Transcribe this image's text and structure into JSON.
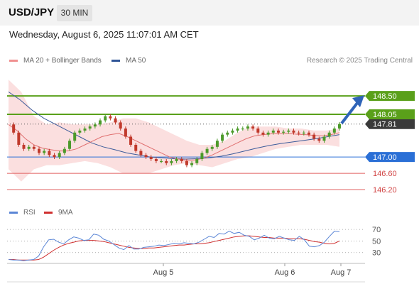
{
  "header": {
    "symbol": "USD/JPY",
    "timeframe": "30 MIN"
  },
  "datetime": "Wednesday, August 6, 2025 11:07:01 AM CET",
  "legend": {
    "ma20": "MA 20 + Bollinger Bands",
    "ma50": "MA 50",
    "credit": "Research © 2025 Trading Central",
    "rsi": "RSI",
    "ma9": "9MA"
  },
  "colors": {
    "ma20": "#e07070",
    "band": "#f7c5c5",
    "ma50": "#3b5b9a",
    "resistance": "#5aa01a",
    "support_blue": "#2a6fd6",
    "support_red": "#e06060",
    "rsi": "#5b86d6",
    "rsi_ma": "#d03030",
    "bull": "#4c9a2a",
    "bear": "#c0392b"
  },
  "chart_data": [
    {
      "type": "candlestick",
      "x_ticks": [
        "Aug 5",
        "Aug 6",
        "Aug 7"
      ],
      "levels": [
        {
          "value": "148.50",
          "kind": "resistance"
        },
        {
          "value": "148.05",
          "kind": "resistance"
        },
        {
          "value": "147.81",
          "kind": "current"
        },
        {
          "value": "147.00",
          "kind": "pivot"
        },
        {
          "value": "146.60",
          "kind": "support"
        },
        {
          "value": "146.20",
          "kind": "support"
        }
      ],
      "ylim": [
        145.8,
        149.2
      ],
      "series": [
        {
          "key": "price",
          "values": [
            147.8,
            147.6,
            147.3,
            147.2,
            147.25,
            147.2,
            147.1,
            147.15,
            147.05,
            147.0,
            147.1,
            147.2,
            147.4,
            147.6,
            147.65,
            147.7,
            147.75,
            147.8,
            147.9,
            148.0,
            147.95,
            147.85,
            147.7,
            147.5,
            147.3,
            147.15,
            147.05,
            147.0,
            146.95,
            146.9,
            146.9,
            146.85,
            146.9,
            146.95,
            146.9,
            146.8,
            146.85,
            146.95,
            147.1,
            147.2,
            147.25,
            147.4,
            147.55,
            147.6,
            147.65,
            147.7,
            147.7,
            147.75,
            147.7,
            147.6,
            147.55,
            147.6,
            147.65,
            147.6,
            147.62,
            147.65,
            147.6,
            147.58,
            147.6,
            147.55,
            147.45,
            147.4,
            147.5,
            147.6,
            147.7,
            147.81
          ]
        },
        {
          "key": "ma20",
          "values": [
            147.8,
            147.65,
            147.45,
            147.3,
            147.22,
            147.18,
            147.15,
            147.15,
            147.2,
            147.3,
            147.4,
            147.5,
            147.55,
            147.58,
            147.5,
            147.4,
            147.3,
            147.2,
            147.1,
            147.0,
            146.95,
            146.92,
            146.93,
            146.97,
            147.05,
            147.15,
            147.25,
            147.35,
            147.45,
            147.52,
            147.55,
            147.57,
            147.58,
            147.58,
            147.56,
            147.55,
            147.53,
            147.52,
            147.55,
            147.6
          ]
        },
        {
          "key": "ma50",
          "values": [
            148.6,
            148.4,
            148.15,
            147.95,
            147.8,
            147.65,
            147.5,
            147.35,
            147.25,
            147.18,
            147.1,
            147.05,
            147.0,
            146.98,
            146.96,
            146.95,
            146.96,
            146.98,
            147.02,
            147.08,
            147.15,
            147.22,
            147.28,
            147.33,
            147.37,
            147.41,
            147.45,
            147.5,
            147.55
          ]
        },
        {
          "key": "upper_band",
          "values": [
            148.9,
            148.6,
            148.0,
            147.8,
            147.85,
            147.8,
            147.8,
            147.8,
            147.85,
            147.95,
            147.95,
            147.85,
            147.7,
            147.55,
            147.4,
            147.3,
            147.3,
            147.4,
            147.6,
            147.75,
            147.75,
            147.75,
            147.7,
            147.7,
            147.65,
            147.65,
            147.7
          ]
        },
        {
          "key": "lower_band",
          "values": [
            146.7,
            146.4,
            146.7,
            146.8,
            146.8,
            146.85,
            146.9,
            146.85,
            146.75,
            146.6,
            146.6,
            146.6,
            146.7,
            146.8,
            146.85,
            146.8,
            146.75,
            146.85,
            146.95,
            147.0,
            147.1,
            147.2,
            147.25,
            147.3,
            147.3,
            147.3,
            147.25
          ]
        }
      ]
    },
    {
      "type": "line",
      "title": "RSI",
      "yticks": [
        "70",
        "50",
        "30"
      ],
      "ylim": [
        10,
        80
      ],
      "series": [
        {
          "name": "RSI",
          "values": [
            18,
            17,
            17,
            16,
            17,
            18,
            24,
            40,
            52,
            53,
            48,
            45,
            52,
            57,
            55,
            51,
            52,
            62,
            60,
            53,
            50,
            44,
            38,
            35,
            42,
            36,
            36,
            39,
            40,
            41,
            43,
            42,
            44,
            46,
            45,
            47,
            46,
            45,
            48,
            53,
            58,
            56,
            63,
            62,
            67,
            63,
            65,
            60,
            58,
            52,
            55,
            60,
            55,
            54,
            58,
            55,
            52,
            51,
            58,
            52,
            41,
            40,
            42,
            48,
            58,
            67,
            66
          ]
        },
        {
          "name": "9MA",
          "values": [
            18,
            18,
            17,
            17,
            17,
            17,
            18,
            22,
            28,
            34,
            39,
            43,
            46,
            48,
            50,
            51,
            51,
            51,
            50,
            49,
            47,
            45,
            43,
            41,
            39,
            38,
            37,
            37,
            38,
            38,
            39,
            40,
            41,
            42,
            43,
            43,
            44,
            45,
            45,
            46,
            47,
            49,
            51,
            53,
            55,
            57,
            58,
            59,
            59,
            58,
            57,
            56,
            56,
            55,
            55,
            55,
            54,
            54,
            54,
            53,
            51,
            49,
            48,
            46,
            45,
            46,
            50
          ]
        }
      ]
    }
  ]
}
